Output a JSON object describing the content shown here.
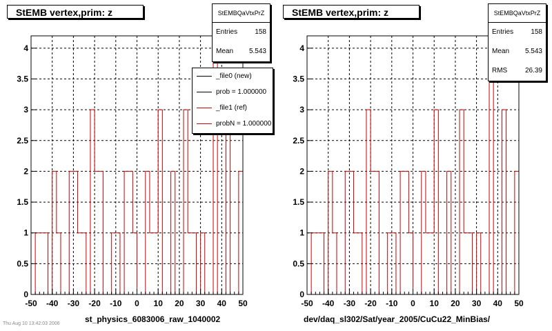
{
  "chart_data": [
    {
      "type": "histogram",
      "title": "StEMB  vertex,prim: z",
      "xlabel": "st_physics_6083006_raw_1040002",
      "xlim": [
        -50,
        50
      ],
      "ylim": [
        0,
        4.2
      ],
      "xticks": [
        "-50",
        "-40",
        "-30",
        "-20",
        "-10",
        "0",
        "10",
        "20",
        "30",
        "40",
        "50"
      ],
      "yticks": [
        "0",
        "0.5",
        "1",
        "1.5",
        "2",
        "2.5",
        "3",
        "3.5",
        "4"
      ],
      "grid": true,
      "bin_width": 2,
      "series": [
        {
          "name": "_file1 (ref)",
          "color": "#cc0000",
          "values": [
            0,
            1,
            1,
            1,
            0,
            2,
            1,
            0,
            0,
            2,
            2,
            1,
            1,
            0,
            3,
            2,
            2,
            0,
            0,
            1,
            1,
            0,
            2,
            2,
            1,
            0,
            0,
            2,
            1,
            1,
            3,
            0,
            0,
            2,
            0,
            0,
            3,
            1,
            1,
            0,
            1,
            0,
            0,
            4,
            0,
            0,
            3,
            0,
            0,
            2
          ]
        }
      ],
      "stats": {
        "name": "StEMBQaVtxPrZ",
        "rows": [
          {
            "label": "Entries",
            "value": "158"
          },
          {
            "label": "Mean",
            "value": "5.543"
          }
        ]
      },
      "legend": {
        "placement": "top-right",
        "entries": [
          {
            "text": "_file0 (new)",
            "color": "#000000"
          },
          {
            "text": "prob = 1.000000",
            "color": "#000000"
          },
          {
            "text": "_file1 (ref)",
            "color": "#cc0000"
          },
          {
            "text": "probN = 1.000000",
            "color": "#cc0000"
          }
        ]
      }
    },
    {
      "type": "histogram",
      "title": "StEMB  vertex,prim: z",
      "xlabel": "dev/daq_sl302/Sat/year_2005/CuCu22_MinBias/",
      "xlim": [
        -50,
        50
      ],
      "ylim": [
        0,
        4.2
      ],
      "xticks": [
        "-50",
        "-40",
        "-30",
        "-20",
        "-10",
        "0",
        "10",
        "20",
        "30",
        "40",
        "50"
      ],
      "yticks": [
        "0",
        "0.5",
        "1",
        "1.5",
        "2",
        "2.5",
        "3",
        "3.5",
        "4"
      ],
      "grid": true,
      "bin_width": 2,
      "series": [
        {
          "name": "",
          "color": "#cc0000",
          "values": [
            0,
            1,
            1,
            1,
            0,
            2,
            1,
            0,
            0,
            2,
            2,
            1,
            1,
            0,
            3,
            2,
            2,
            0,
            0,
            1,
            1,
            0,
            2,
            2,
            1,
            0,
            0,
            2,
            1,
            1,
            3,
            0,
            0,
            2,
            0,
            0,
            3,
            1,
            1,
            0,
            1,
            0,
            0,
            4,
            0,
            0,
            3,
            0,
            0,
            2
          ]
        }
      ],
      "stats": {
        "name": "StEMBQaVtxPrZ",
        "rows": [
          {
            "label": "Entries",
            "value": "158"
          },
          {
            "label": "Mean",
            "value": "5.543"
          },
          {
            "label": "RMS",
            "value": "26.39"
          }
        ]
      }
    }
  ],
  "footer": "Thu Aug 10 13:42:03 2006"
}
